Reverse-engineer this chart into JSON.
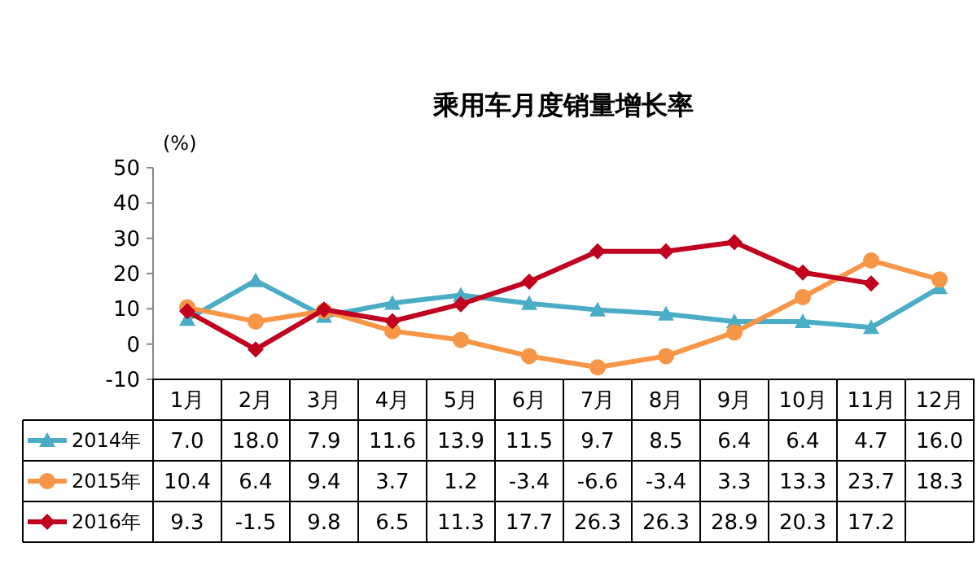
{
  "chart_data": {
    "type": "line",
    "title": "乘用车月度销量增长率",
    "ylabel": "(%)",
    "categories": [
      "1月",
      "2月",
      "3月",
      "4月",
      "5月",
      "6月",
      "7月",
      "8月",
      "9月",
      "10月",
      "11月",
      "12月"
    ],
    "ylim": [
      -10,
      50
    ],
    "yticks": [
      -10,
      0,
      10,
      20,
      30,
      40,
      50
    ],
    "legend": "bottom left",
    "line_style": "solid",
    "series": [
      {
        "name": "2014年",
        "color": "#4bacc6",
        "marker": "triangle",
        "values": [
          7.0,
          18.0,
          7.9,
          11.6,
          13.9,
          11.5,
          9.7,
          8.5,
          6.4,
          6.4,
          4.7,
          16.0
        ],
        "value_labels": [
          "7.0",
          "18.0",
          "7.9",
          "11.6",
          "13.9",
          "11.5",
          "9.7",
          "8.5",
          "6.4",
          "6.4",
          "4.7",
          "16.0"
        ]
      },
      {
        "name": "2015年",
        "color": "#f79646",
        "marker": "circle",
        "values": [
          10.4,
          6.4,
          9.4,
          3.7,
          1.2,
          -3.4,
          -6.6,
          -3.4,
          3.3,
          13.3,
          23.7,
          18.3
        ],
        "value_labels": [
          "10.4",
          "6.4",
          "9.4",
          "3.7",
          "1.2",
          "-3.4",
          "-6.6",
          "-3.4",
          "3.3",
          "13.3",
          "23.7",
          "18.3"
        ]
      },
      {
        "name": "2016年",
        "color": "#c0001e",
        "marker": "diamond",
        "values": [
          9.3,
          -1.5,
          9.8,
          6.5,
          11.3,
          17.7,
          26.3,
          26.3,
          28.9,
          20.3,
          17.2,
          null
        ],
        "value_labels": [
          "9.3",
          "-1.5",
          "9.8",
          "6.5",
          "11.3",
          "17.7",
          "26.3",
          "26.3",
          "28.9",
          "20.3",
          "17.2",
          null
        ]
      }
    ]
  }
}
